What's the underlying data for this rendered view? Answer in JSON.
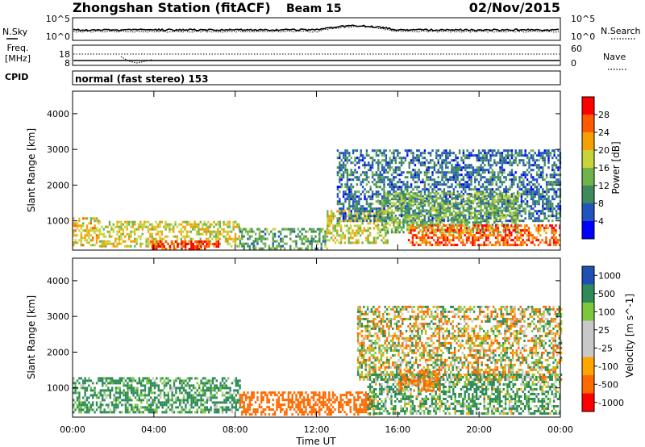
{
  "header": {
    "station": "Zhongshan Station (fitACF)",
    "beam": "Beam 15",
    "date": "02/Nov/2015"
  },
  "noise_panel": {
    "left_label": "N.Sky",
    "right_label": "N.Search",
    "left_ticks": [
      "10^5",
      "10^0"
    ],
    "right_ticks": [
      "10^5",
      "10^0"
    ]
  },
  "freq_panel": {
    "left_label": "Freq.",
    "left_unit": "[MHz]",
    "right_label": "Nave",
    "left_ticks": [
      "18",
      "8"
    ],
    "right_ticks": [
      "60",
      "0"
    ]
  },
  "cpid": {
    "label": "CPID",
    "text": "normal (fast stereo) 153"
  },
  "colors": {
    "power": [
      "#0000ff",
      "#2255bb",
      "#3d8a5e",
      "#6fb34a",
      "#c8d33a",
      "#f5a000",
      "#ff5a00",
      "#ff0000"
    ],
    "velocity": [
      "#ff0000",
      "#ff6a00",
      "#ffa500",
      "#c8c8c8",
      "#c8c8c8",
      "#7cc83c",
      "#2e8b57",
      "#1e50b4"
    ]
  },
  "chart_data": [
    {
      "type": "heatmap",
      "name": "power",
      "ylabel": "Slant Range [km]",
      "xlabel": "Time UT",
      "x_ticks": [
        "00:00",
        "04:00",
        "08:00",
        "12:00",
        "16:00",
        "20:00",
        "00:00"
      ],
      "y_ticks": [
        "1000",
        "2000",
        "3000",
        "4000"
      ],
      "ylim": [
        180,
        4630
      ],
      "xlim_hours": [
        0,
        24
      ],
      "colorbar": {
        "label": "Power [dB]",
        "ticks": [
          "4",
          "8",
          "12",
          "16",
          "20",
          "24",
          "28"
        ],
        "range": [
          0,
          32
        ]
      },
      "regions": [
        {
          "t0": 0,
          "t1": 1.3,
          "r0": 300,
          "r1": 1100,
          "value": 20
        },
        {
          "t0": 1.3,
          "t1": 8.2,
          "r0": 300,
          "r1": 1000,
          "value": 18
        },
        {
          "t0": 3.8,
          "t1": 7.2,
          "r0": 190,
          "r1": 450,
          "value": 28
        },
        {
          "t0": 8.2,
          "t1": 12.5,
          "r0": 250,
          "r1": 800,
          "value": 12
        },
        {
          "t0": 12.5,
          "t1": 15.5,
          "r0": 400,
          "r1": 1300,
          "value": 18
        },
        {
          "t0": 13.0,
          "t1": 24,
          "r0": 1000,
          "r1": 3000,
          "value": 8
        },
        {
          "t0": 15.0,
          "t1": 22,
          "r0": 700,
          "r1": 1800,
          "value": 14
        },
        {
          "t0": 16.5,
          "t1": 24,
          "r0": 300,
          "r1": 900,
          "value": 26
        }
      ]
    },
    {
      "type": "heatmap",
      "name": "velocity",
      "ylabel": "Slant Range [km]",
      "xlabel": "Time UT",
      "x_ticks": [
        "00:00",
        "04:00",
        "08:00",
        "12:00",
        "16:00",
        "20:00",
        "00:00"
      ],
      "y_ticks": [
        "1000",
        "2000",
        "3000",
        "4000"
      ],
      "ylim": [
        180,
        4630
      ],
      "xlim_hours": [
        0,
        24
      ],
      "colorbar": {
        "label": "Velocity [m s^-1]",
        "ticks": [
          "1000",
          "500",
          "100",
          "25",
          "-25",
          "-100",
          "-500",
          "-1000"
        ]
      },
      "regions": [
        {
          "t0": 0,
          "t1": 8.2,
          "r0": 300,
          "r1": 1300,
          "value": 200
        },
        {
          "t0": 8.2,
          "t1": 14.8,
          "r0": 250,
          "r1": 900,
          "value": -300
        },
        {
          "t0": 14.0,
          "t1": 24,
          "r0": 1200,
          "r1": 3300,
          "value": 0
        },
        {
          "t0": 14.5,
          "t1": 24,
          "r0": 300,
          "r1": 1400,
          "value": 150
        },
        {
          "t0": 16.0,
          "t1": 18,
          "r0": 900,
          "r1": 1500,
          "value": -200
        }
      ]
    }
  ]
}
